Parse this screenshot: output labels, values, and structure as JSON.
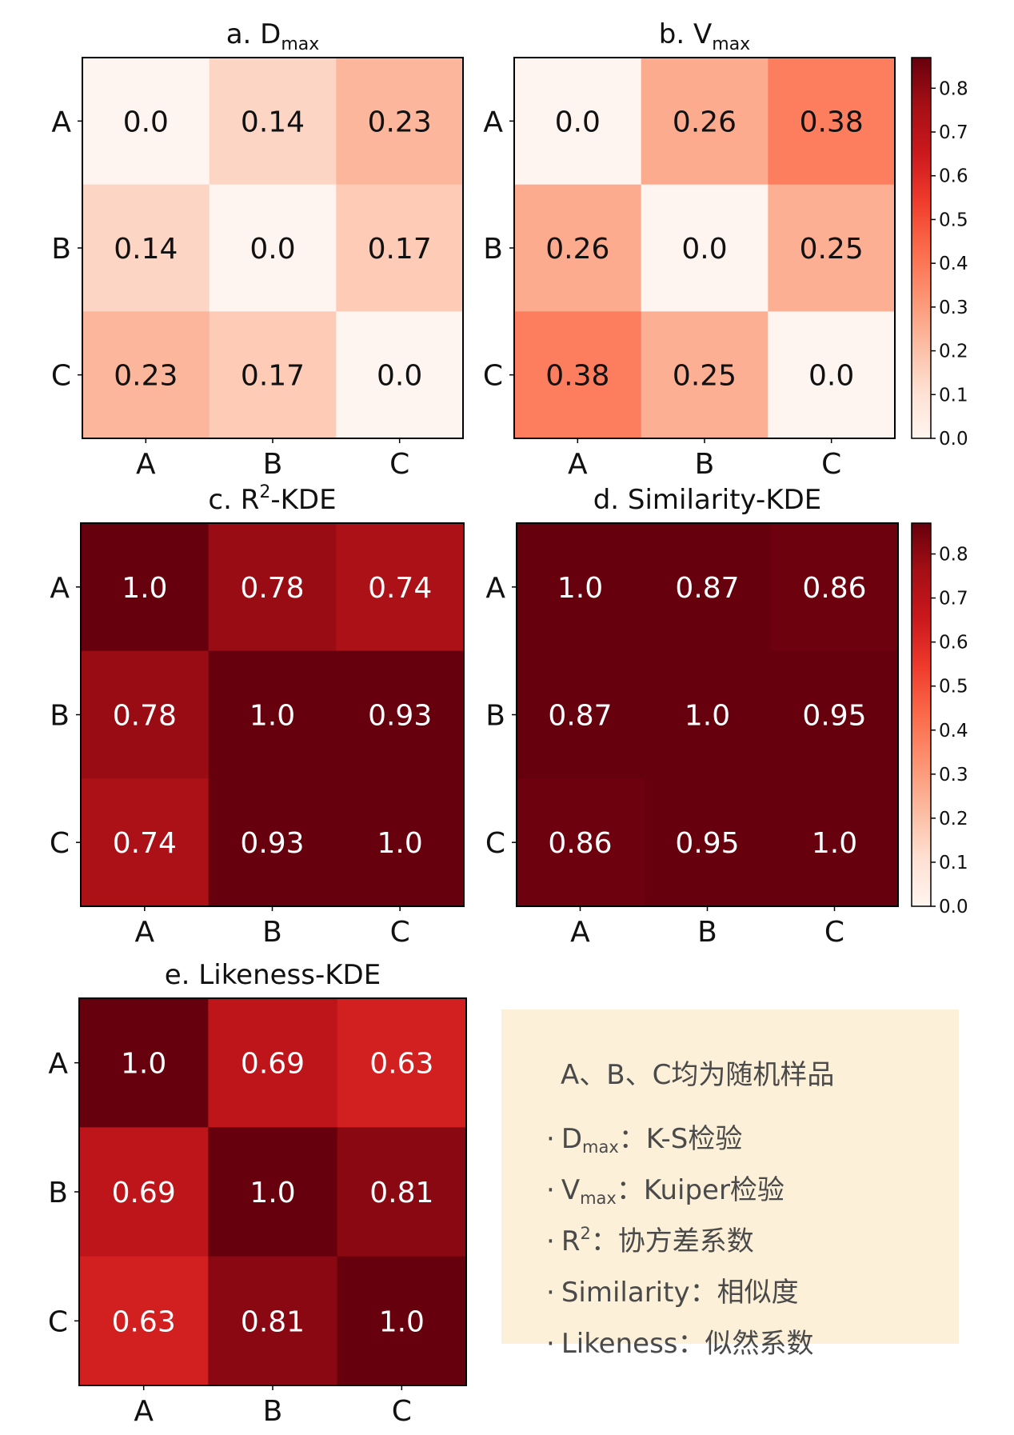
{
  "chart_data": [
    {
      "type": "heatmap",
      "title": "a.  D",
      "title_sub": "max",
      "title_sup": "",
      "title_suffix": "",
      "x_categories": [
        "A",
        "B",
        "C"
      ],
      "y_categories": [
        "A",
        "B",
        "C"
      ],
      "values": [
        [
          0.0,
          0.14,
          0.23
        ],
        [
          0.14,
          0.0,
          0.17
        ],
        [
          0.23,
          0.17,
          0.0
        ]
      ],
      "value_labels": [
        [
          "0.0",
          "0.14",
          "0.23"
        ],
        [
          "0.14",
          "0.0",
          "0.17"
        ],
        [
          "0.23",
          "0.17",
          "0.0"
        ]
      ]
    },
    {
      "type": "heatmap",
      "title": "b.  V",
      "title_sub": "max",
      "title_sup": "",
      "title_suffix": "",
      "x_categories": [
        "A",
        "B",
        "C"
      ],
      "y_categories": [
        "A",
        "B",
        "C"
      ],
      "values": [
        [
          0.0,
          0.26,
          0.38
        ],
        [
          0.26,
          0.0,
          0.25
        ],
        [
          0.38,
          0.25,
          0.0
        ]
      ],
      "value_labels": [
        [
          "0.0",
          "0.26",
          "0.38"
        ],
        [
          "0.26",
          "0.0",
          "0.25"
        ],
        [
          "0.38",
          "0.25",
          "0.0"
        ]
      ]
    },
    {
      "type": "heatmap",
      "title": "c.  R",
      "title_sub": "",
      "title_sup": "2",
      "title_suffix": "-KDE",
      "x_categories": [
        "A",
        "B",
        "C"
      ],
      "y_categories": [
        "A",
        "B",
        "C"
      ],
      "values": [
        [
          1.0,
          0.78,
          0.74
        ],
        [
          0.78,
          1.0,
          0.93
        ],
        [
          0.74,
          0.93,
          1.0
        ]
      ],
      "value_labels": [
        [
          "1.0",
          "0.78",
          "0.74"
        ],
        [
          "0.78",
          "1.0",
          "0.93"
        ],
        [
          "0.74",
          "0.93",
          "1.0"
        ]
      ]
    },
    {
      "type": "heatmap",
      "title": "d.  Similarity-KDE",
      "title_sub": "",
      "title_sup": "",
      "title_suffix": "",
      "x_categories": [
        "A",
        "B",
        "C"
      ],
      "y_categories": [
        "A",
        "B",
        "C"
      ],
      "values": [
        [
          1.0,
          0.87,
          0.86
        ],
        [
          0.87,
          1.0,
          0.95
        ],
        [
          0.86,
          0.95,
          1.0
        ]
      ],
      "value_labels": [
        [
          "1.0",
          "0.87",
          "0.86"
        ],
        [
          "0.87",
          "1.0",
          "0.95"
        ],
        [
          "0.86",
          "0.95",
          "1.0"
        ]
      ]
    },
    {
      "type": "heatmap",
      "title": "e.  Likeness-KDE",
      "title_sub": "",
      "title_sup": "",
      "title_suffix": "",
      "x_categories": [
        "A",
        "B",
        "C"
      ],
      "y_categories": [
        "A",
        "B",
        "C"
      ],
      "values": [
        [
          1.0,
          0.69,
          0.63
        ],
        [
          0.69,
          1.0,
          0.81
        ],
        [
          0.63,
          0.81,
          1.0
        ]
      ],
      "value_labels": [
        [
          "1.0",
          "0.69",
          "0.63"
        ],
        [
          "0.69",
          "1.0",
          "0.81"
        ],
        [
          "0.63",
          "0.81",
          "1.0"
        ]
      ]
    }
  ],
  "colorbar": {
    "range": [
      0.0,
      0.87
    ],
    "ticks": [
      "0.0",
      "0.1",
      "0.2",
      "0.3",
      "0.4",
      "0.5",
      "0.6",
      "0.7",
      "0.8"
    ],
    "colormap": "Reds",
    "stops": [
      "#fff5f0",
      "#fee0d2",
      "#fcbba1",
      "#fc9272",
      "#fb6a4a",
      "#ef3b2c",
      "#cb181d",
      "#a50f15",
      "#67000d"
    ],
    "text_dark": "#111111",
    "text_light": "#ffffff"
  },
  "legend": {
    "title": "A、B、C均为随机样品",
    "items": [
      {
        "bullet": "·",
        "main": "D",
        "sub": "max",
        "sup": "",
        "rest": "：K-S检验"
      },
      {
        "bullet": "·",
        "main": "V",
        "sub": "max",
        "sup": "",
        "rest": "：Kuiper检验"
      },
      {
        "bullet": "·",
        "main": "R",
        "sub": "",
        "sup": "2",
        "rest": "：协方差系数"
      },
      {
        "bullet": "·",
        "main": "Similarity",
        "sub": "",
        "sup": "",
        "rest": "：相似度"
      },
      {
        "bullet": "·",
        "main": "Likeness",
        "sub": "",
        "sup": "",
        "rest": "：似然系数"
      }
    ],
    "background": "#fdf0d8"
  }
}
